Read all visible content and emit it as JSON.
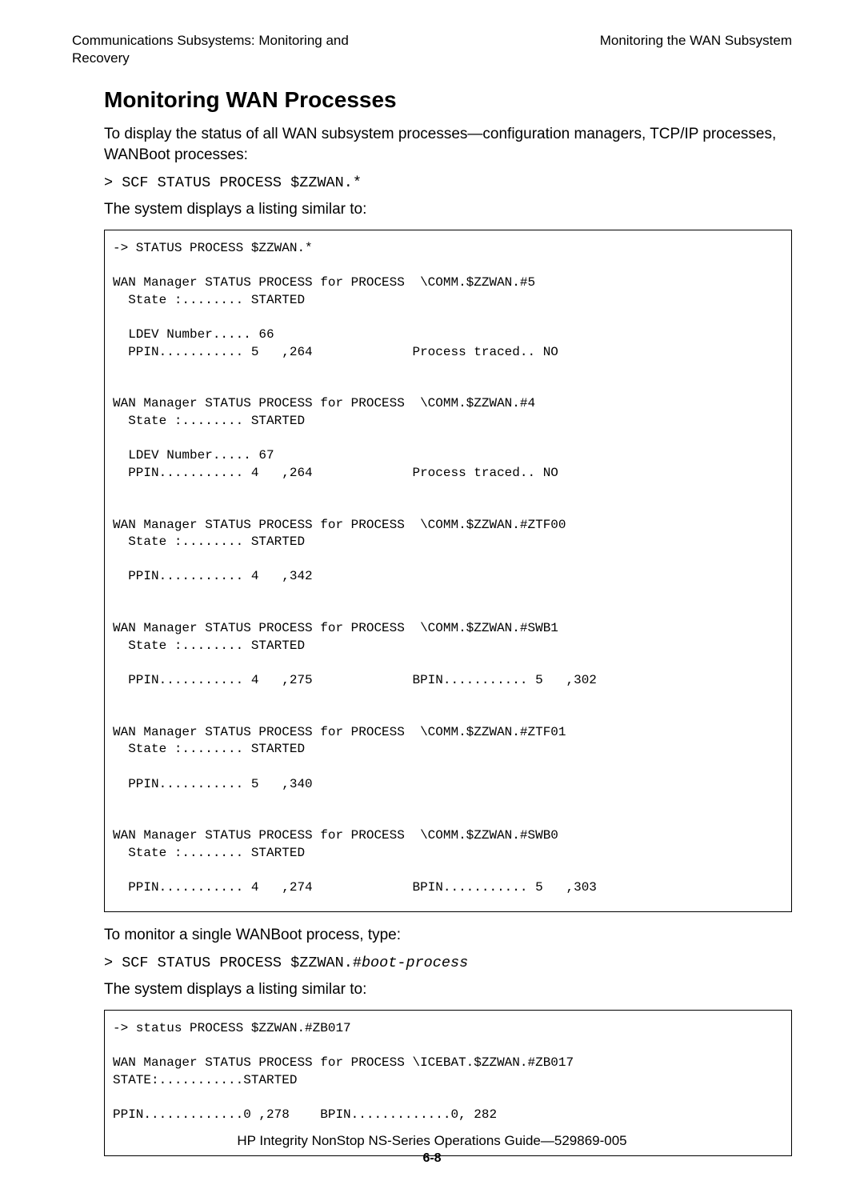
{
  "header": {
    "left_line1": "Communications Subsystems: Monitoring and",
    "left_line2": "Recovery",
    "right": "Monitoring the WAN Subsystem"
  },
  "title": "Monitoring WAN Processes",
  "p1": "To display the status of all WAN subsystem processes—configuration managers, TCP/IP processes, WANBoot processes:",
  "cmd1": "> SCF STATUS PROCESS $ZZWAN.*",
  "p2": "The system displays a listing similar to:",
  "block1": "-> STATUS PROCESS $ZZWAN.*\n\nWAN Manager STATUS PROCESS for PROCESS  \\COMM.$ZZWAN.#5\n  State :........ STARTED\n\n  LDEV Number..... 66\n  PPIN........... 5   ,264             Process traced.. NO\n\n\nWAN Manager STATUS PROCESS for PROCESS  \\COMM.$ZZWAN.#4\n  State :........ STARTED\n\n  LDEV Number..... 67\n  PPIN........... 4   ,264             Process traced.. NO\n\n\nWAN Manager STATUS PROCESS for PROCESS  \\COMM.$ZZWAN.#ZTF00\n  State :........ STARTED\n\n  PPIN........... 4   ,342\n\n\nWAN Manager STATUS PROCESS for PROCESS  \\COMM.$ZZWAN.#SWB1\n  State :........ STARTED\n\n  PPIN........... 4   ,275             BPIN........... 5   ,302\n\n\nWAN Manager STATUS PROCESS for PROCESS  \\COMM.$ZZWAN.#ZTF01\n  State :........ STARTED\n\n  PPIN........... 5   ,340\n\n\nWAN Manager STATUS PROCESS for PROCESS  \\COMM.$ZZWAN.#SWB0\n  State :........ STARTED\n\n  PPIN........... 4   ,274             BPIN........... 5   ,303",
  "p3": "To monitor a single WANBoot process, type:",
  "cmd2_pre": "> SCF STATUS PROCESS $ZZWAN.#",
  "cmd2_ital": "boot-process",
  "p4": "The system displays a listing similar to:",
  "block2": "-> status PROCESS $ZZWAN.#ZB017\n\nWAN Manager STATUS PROCESS for PROCESS \\ICEBAT.$ZZWAN.#ZB017\nSTATE:...........STARTED\n\nPPIN.............0 ,278    BPIN.............0, 282\n\n",
  "footer": {
    "line": "HP Integrity NonStop NS-Series Operations Guide—529869-005",
    "page": "6-8"
  }
}
